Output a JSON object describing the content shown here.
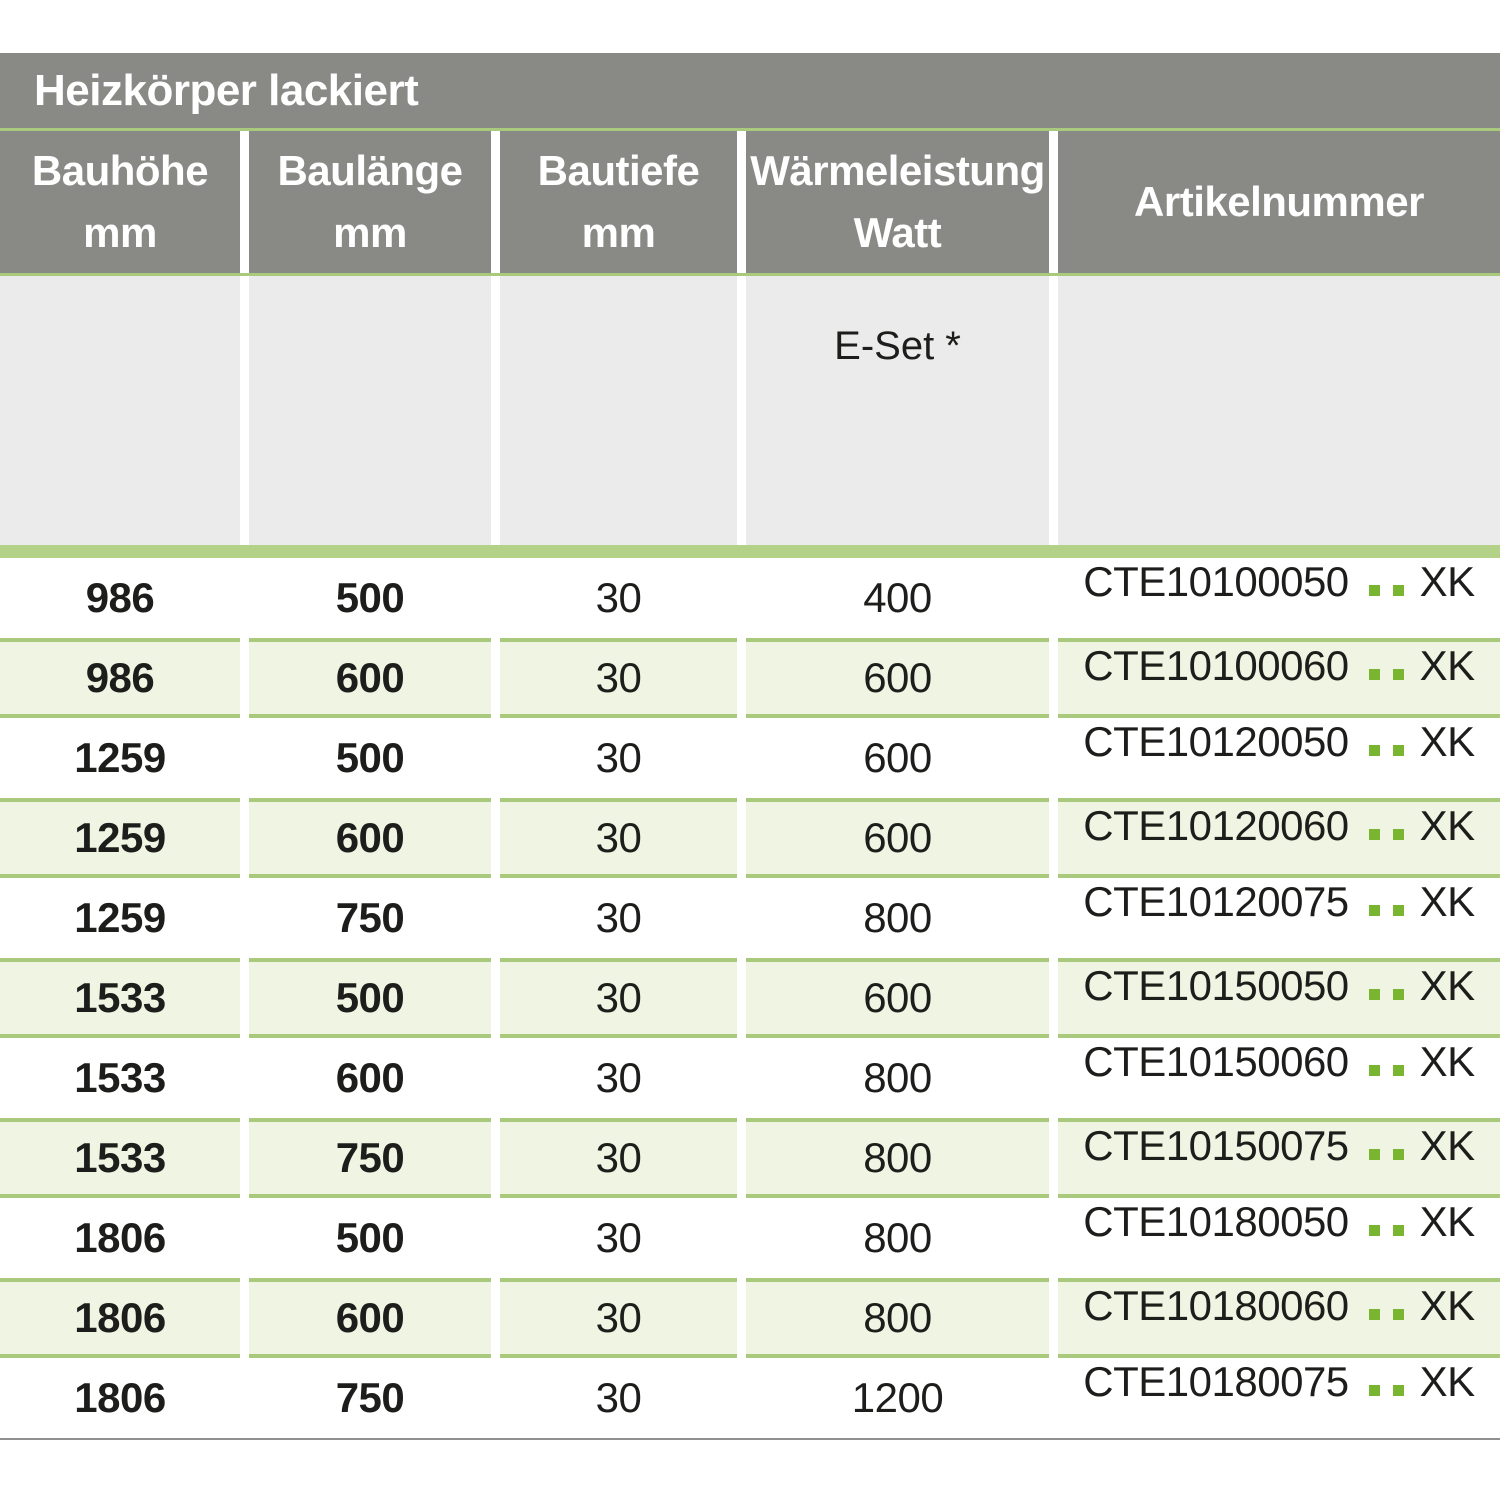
{
  "title": "Heizkörper lackiert",
  "colors": {
    "header_gray": "#898a86",
    "panel_gray": "#ebebeb",
    "accent_green": "#a9c97d",
    "bar_green": "#b3d287",
    "row_green": "#eff4e3",
    "dot_green": "#79b530",
    "text_dark": "#1d1d1b"
  },
  "table": {
    "columns": [
      {
        "label": "Bauhöhe",
        "unit": "mm"
      },
      {
        "label": "Baulänge",
        "unit": "mm"
      },
      {
        "label": "Bautiefe",
        "unit": "mm"
      },
      {
        "label": "Wärmeleistung",
        "unit": "Watt"
      },
      {
        "label": "Artikelnummer",
        "unit": ""
      }
    ],
    "subheader": {
      "e_set_label": "E-Set *"
    },
    "rows": [
      {
        "bauhoehe": "986",
        "baulaenge": "500",
        "bautiefe": "30",
        "watt": "400",
        "artikel_prefix": "CTE10100050",
        "artikel_suffix": "XK"
      },
      {
        "bauhoehe": "986",
        "baulaenge": "600",
        "bautiefe": "30",
        "watt": "600",
        "artikel_prefix": "CTE10100060",
        "artikel_suffix": "XK"
      },
      {
        "bauhoehe": "1259",
        "baulaenge": "500",
        "bautiefe": "30",
        "watt": "600",
        "artikel_prefix": "CTE10120050",
        "artikel_suffix": "XK"
      },
      {
        "bauhoehe": "1259",
        "baulaenge": "600",
        "bautiefe": "30",
        "watt": "600",
        "artikel_prefix": "CTE10120060",
        "artikel_suffix": "XK"
      },
      {
        "bauhoehe": "1259",
        "baulaenge": "750",
        "bautiefe": "30",
        "watt": "800",
        "artikel_prefix": "CTE10120075",
        "artikel_suffix": "XK"
      },
      {
        "bauhoehe": "1533",
        "baulaenge": "500",
        "bautiefe": "30",
        "watt": "600",
        "artikel_prefix": "CTE10150050",
        "artikel_suffix": "XK"
      },
      {
        "bauhoehe": "1533",
        "baulaenge": "600",
        "bautiefe": "30",
        "watt": "800",
        "artikel_prefix": "CTE10150060",
        "artikel_suffix": "XK"
      },
      {
        "bauhoehe": "1533",
        "baulaenge": "750",
        "bautiefe": "30",
        "watt": "800",
        "artikel_prefix": "CTE10150075",
        "artikel_suffix": "XK"
      },
      {
        "bauhoehe": "1806",
        "baulaenge": "500",
        "bautiefe": "30",
        "watt": "800",
        "artikel_prefix": "CTE10180050",
        "artikel_suffix": "XK"
      },
      {
        "bauhoehe": "1806",
        "baulaenge": "600",
        "bautiefe": "30",
        "watt": "800",
        "artikel_prefix": "CTE10180060",
        "artikel_suffix": "XK"
      },
      {
        "bauhoehe": "1806",
        "baulaenge": "750",
        "bautiefe": "30",
        "watt": "1200",
        "artikel_prefix": "CTE10180075",
        "artikel_suffix": "XK"
      }
    ]
  }
}
